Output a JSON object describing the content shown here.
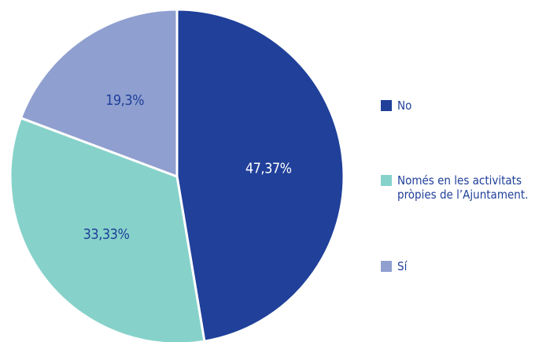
{
  "chart_data": {
    "type": "pie",
    "categories": [
      "No",
      "Només en les activitats pròpies de l’Ajuntament.",
      "Sí"
    ],
    "values": [
      47.37,
      33.33,
      19.3
    ],
    "value_labels": [
      "47,37%",
      "33,33%",
      "19,3%"
    ],
    "colors": [
      "#20409a",
      "#86d2ca",
      "#8f9fd0"
    ]
  }
}
